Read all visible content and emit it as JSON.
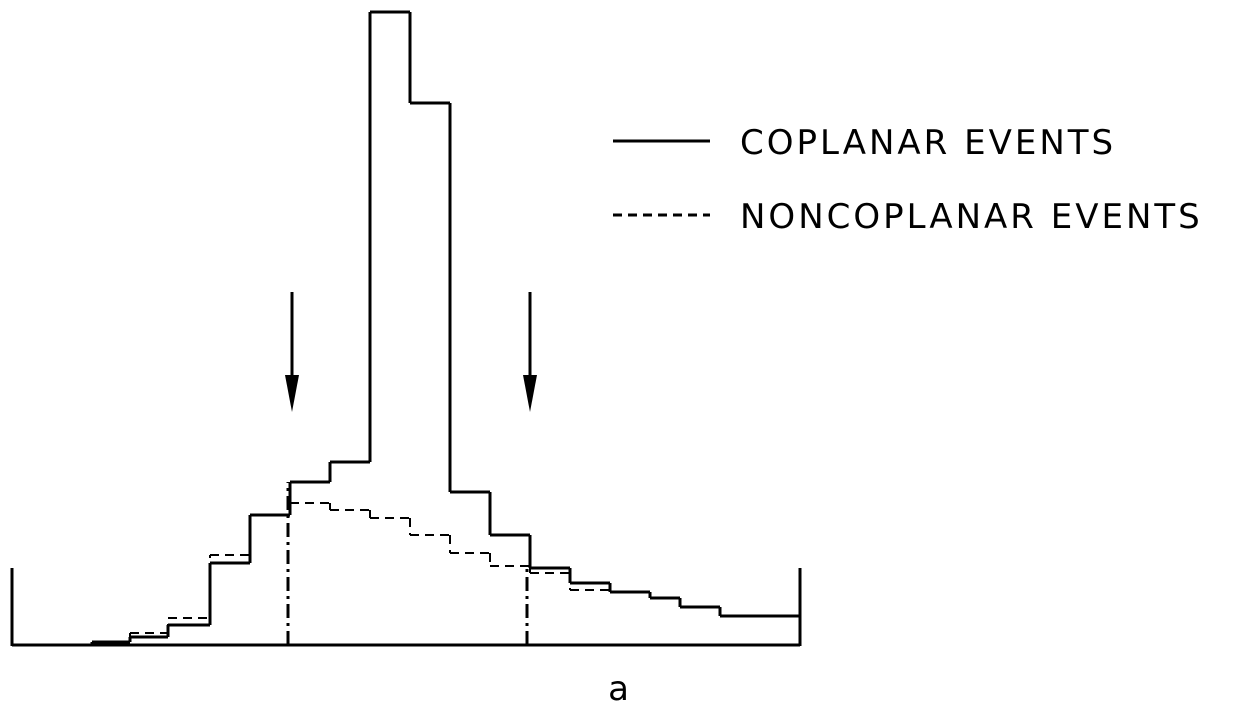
{
  "chart_data": {
    "type": "histogram",
    "bins": [
      80,
      118,
      156,
      198,
      238,
      278,
      318,
      358,
      398,
      438,
      478,
      518,
      558,
      598,
      638,
      668,
      708,
      788
    ],
    "series": [
      {
        "name": "COPLANAR EVENTS",
        "color": "#000000",
        "style": "solid",
        "values": [
          3,
          8,
          20,
          82,
          130,
          163,
          183,
          633,
          542,
          153,
          110,
          77,
          62,
          53,
          47,
          38,
          29
        ]
      },
      {
        "name": "NONCOPLANAR EVENTS",
        "color": "#000000",
        "style": "dashed",
        "values": [
          3,
          12,
          27,
          90,
          130,
          142,
          135,
          127,
          110,
          92,
          79,
          72,
          55,
          53,
          47,
          38,
          29
        ]
      }
    ],
    "xlim": [
      0,
      788
    ],
    "ylim": [
      0,
      640
    ],
    "caption": "a"
  }
}
